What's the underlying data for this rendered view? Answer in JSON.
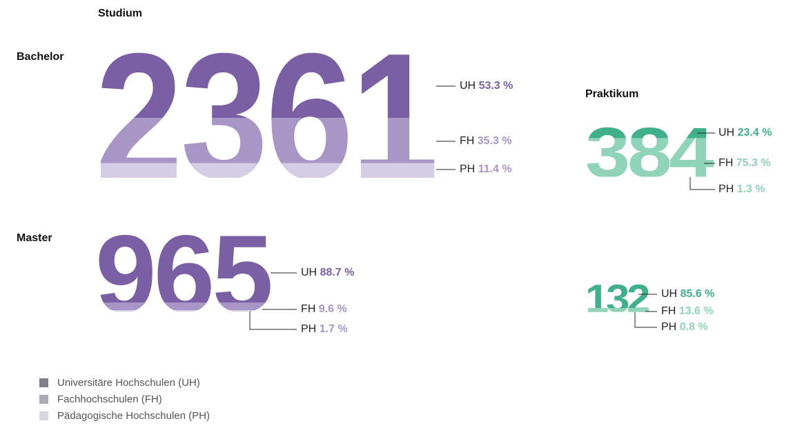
{
  "studium": {
    "title": "Studium",
    "groups": [
      {
        "label": "Bachelor",
        "total": 2361,
        "shares": [
          {
            "name": "UH",
            "value": 53.3,
            "label": "53.3 %"
          },
          {
            "name": "FH",
            "value": 35.3,
            "label": "35.3 %"
          },
          {
            "name": "PH",
            "value": 11.4,
            "label": "11.4 %"
          }
        ]
      },
      {
        "label": "Master",
        "total": 965,
        "shares": [
          {
            "name": "UH",
            "value": 88.7,
            "label": "88.7 %"
          },
          {
            "name": "FH",
            "value": 9.6,
            "label": "9.6 %"
          },
          {
            "name": "PH",
            "value": 1.7,
            "label": "1.7 %"
          }
        ]
      }
    ]
  },
  "praktikum": {
    "title": "Praktikum",
    "groups": [
      {
        "total": 384,
        "shares": [
          {
            "name": "UH",
            "value": 23.4,
            "label": "23.4 %"
          },
          {
            "name": "FH",
            "value": 75.3,
            "label": "75.3 %"
          },
          {
            "name": "PH",
            "value": 1.3,
            "label": "1.3 %"
          }
        ]
      },
      {
        "total": 132,
        "shares": [
          {
            "name": "UH",
            "value": 85.6,
            "label": "85.6 %"
          },
          {
            "name": "FH",
            "value": 13.6,
            "label": "13.6 %"
          },
          {
            "name": "PH",
            "value": 0.8,
            "label": "0.8 %"
          }
        ]
      }
    ]
  },
  "legend": [
    "Universitäre Hochschulen (UH)",
    "Fachhochschulen (FH)",
    "Pädagogische Hochschulen (PH)"
  ]
}
